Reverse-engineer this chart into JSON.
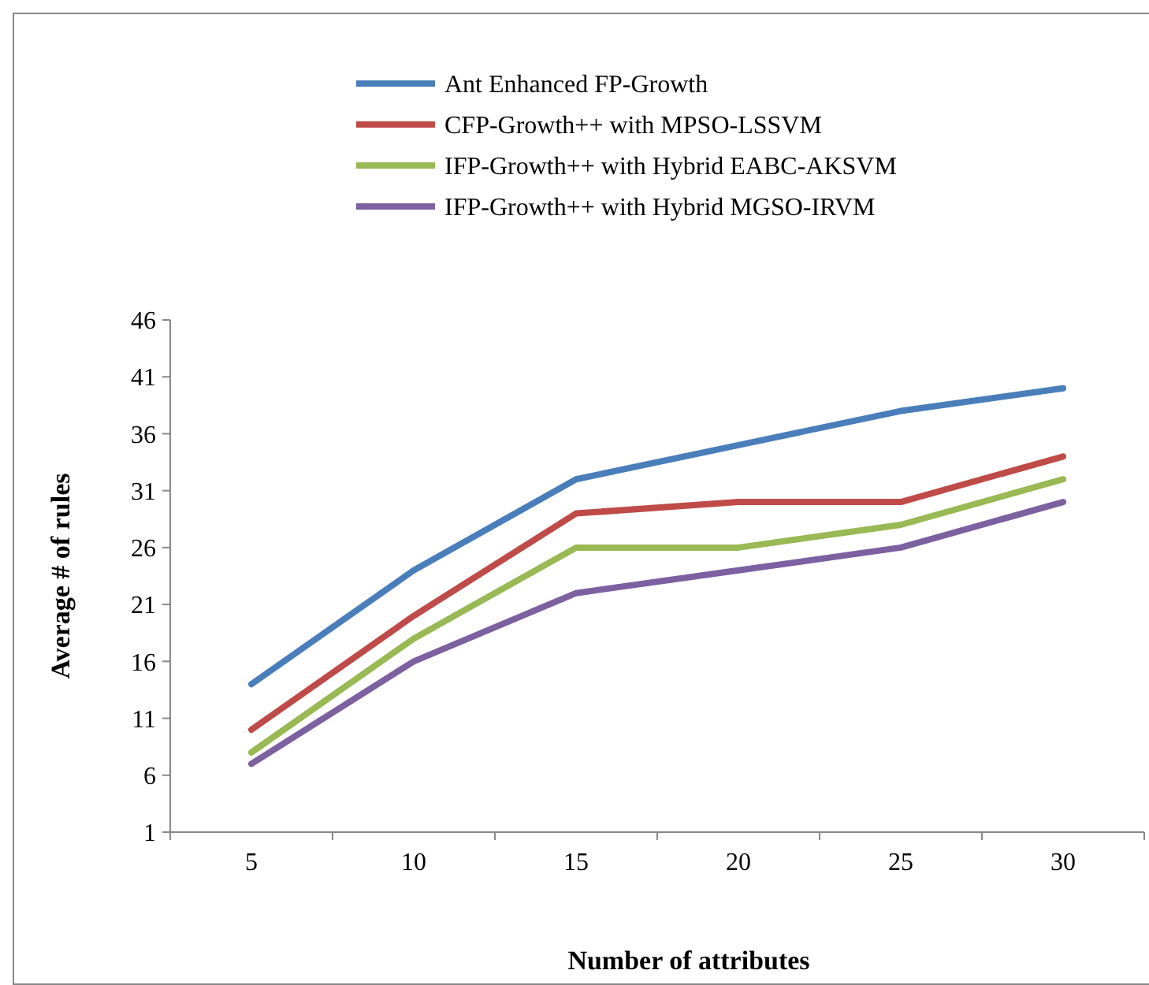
{
  "chart_data": {
    "type": "line",
    "xlabel": "Number of attributes",
    "ylabel": "Average # of rules",
    "categories": [
      "5",
      "10",
      "15",
      "20",
      "25",
      "30"
    ],
    "series": [
      {
        "name": "Ant Enhanced FP-Growth",
        "color": "#4a7ebb",
        "values": [
          14,
          24,
          32,
          35,
          38,
          40
        ]
      },
      {
        "name": "CFP-Growth++ with MPSO-LSSVM",
        "color": "#be4b48",
        "values": [
          10,
          20,
          29,
          30,
          30,
          34
        ]
      },
      {
        "name": "IFP-Growth++ with Hybrid EABC-AKSVM",
        "color": "#98b954",
        "values": [
          8,
          18,
          26,
          26,
          28,
          32
        ]
      },
      {
        "name": "IFP-Growth++ with Hybrid MGSO-IRVM",
        "color": "#7d60a0",
        "values": [
          7,
          16,
          22,
          24,
          26,
          30
        ]
      }
    ],
    "ylim": [
      1,
      46
    ],
    "yticks": [
      1,
      6,
      11,
      16,
      21,
      26,
      31,
      36,
      41,
      46
    ],
    "grid": false,
    "legend": "top",
    "marker": "none",
    "line_style": "solid"
  }
}
